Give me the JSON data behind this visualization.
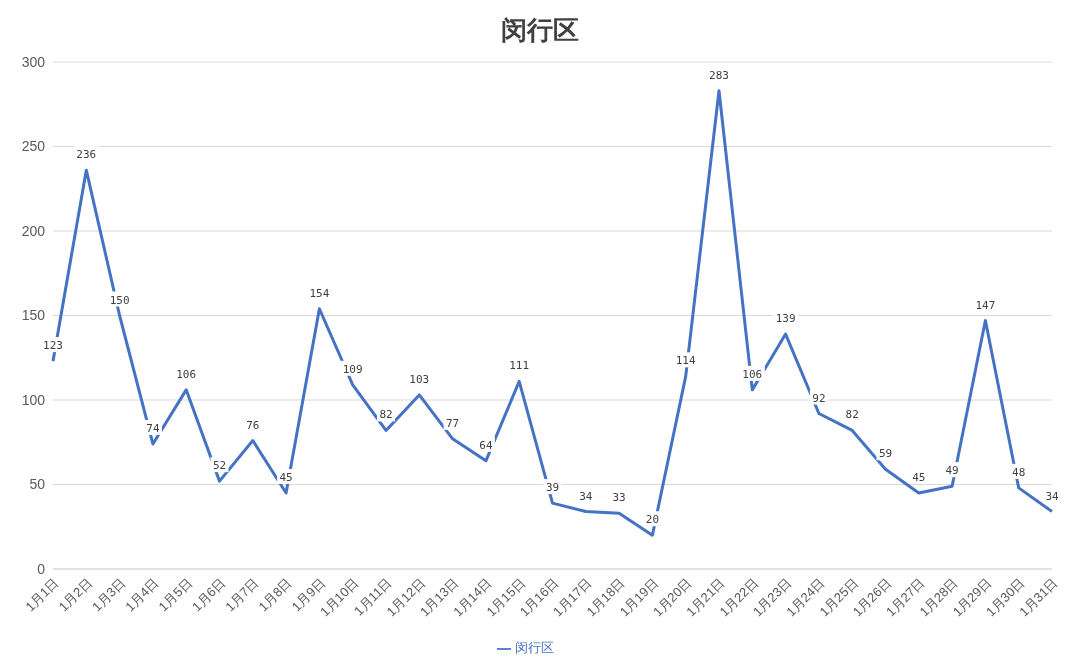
{
  "chart_data": {
    "type": "line",
    "title": "闵行区",
    "categories": [
      "1月1日",
      "1月2日",
      "1月3日",
      "1月4日",
      "1月5日",
      "1月6日",
      "1月7日",
      "1月8日",
      "1月9日",
      "1月10日",
      "1月11日",
      "1月12日",
      "1月13日",
      "1月14日",
      "1月15日",
      "1月16日",
      "1月17日",
      "1月18日",
      "1月19日",
      "1月20日",
      "1月21日",
      "1月22日",
      "1月23日",
      "1月24日",
      "1月25日",
      "1月26日",
      "1月27日",
      "1月28日",
      "1月29日",
      "1月30日",
      "1月31日"
    ],
    "series": [
      {
        "name": "闵行区",
        "color": "#4472c4",
        "values": [
          123,
          236,
          150,
          74,
          106,
          52,
          76,
          45,
          154,
          109,
          82,
          103,
          77,
          64,
          111,
          39,
          34,
          33,
          20,
          114,
          283,
          106,
          139,
          92,
          82,
          59,
          45,
          49,
          147,
          48,
          34
        ]
      }
    ],
    "ylim": [
      0,
      300
    ],
    "yticks": [
      0,
      50,
      100,
      150,
      200,
      250,
      300
    ],
    "grid": "y",
    "legend": "bottom",
    "data_labels": true,
    "marker": "none",
    "line_style": "solid"
  }
}
